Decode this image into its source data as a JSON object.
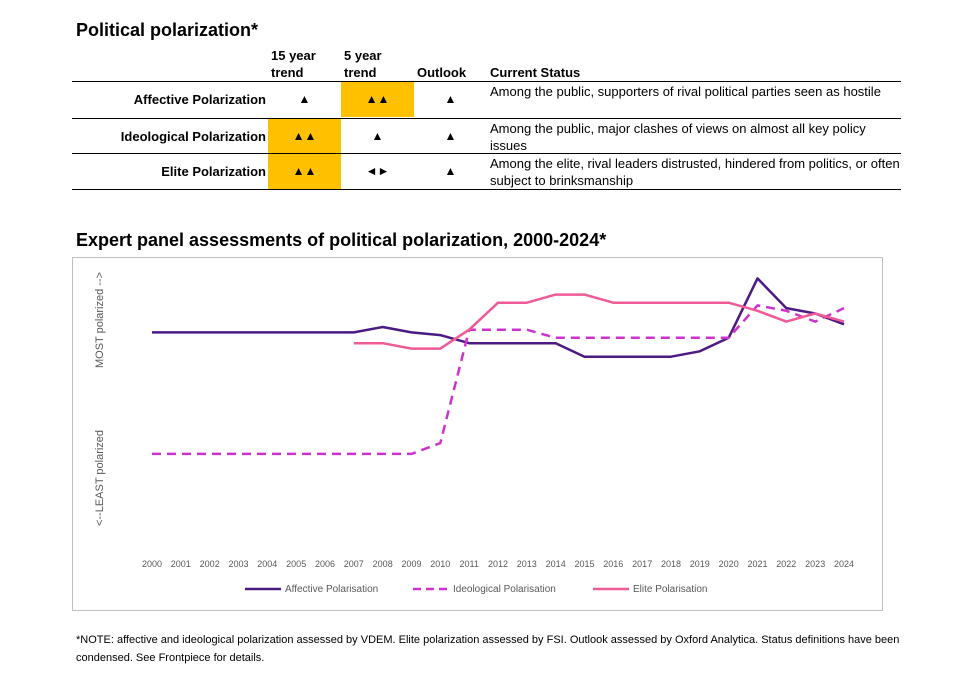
{
  "table": {
    "title": "Political polarization*",
    "headers": {
      "trend15": "15 year trend",
      "trend5": "5 year trend",
      "outlook": "Outlook",
      "status": "Current Status"
    },
    "rows": [
      {
        "label": "Affective Polarization",
        "trend15": "▲",
        "trend5": "▲▲",
        "outlook": "▲",
        "status": "Among the public, supporters of rival political parties seen as hostile",
        "highlight_color": "#ffc000"
      },
      {
        "label": "Ideological Polarization",
        "trend15": "▲▲",
        "trend5": "▲",
        "outlook": "▲",
        "status": "Among the public, major clashes of views on almost all key policy issues",
        "highlight_color": "#ffc000"
      },
      {
        "label": "Elite Polarization",
        "trend15": "▲▲",
        "trend5": "◄►",
        "outlook": "▲",
        "status": "Among the elite, rival leaders distrusted, hindered from politics, or often subject to brinksmanship",
        "highlight_color": "#ffc000"
      }
    ]
  },
  "chart_data": {
    "type": "line",
    "title": "Expert panel assessments of political polarization, 2000-2024*",
    "ylabel_top": "MOST polarized -->",
    "ylabel_bottom": "<--LEAST polarized",
    "x": [
      2000,
      2001,
      2002,
      2003,
      2004,
      2005,
      2006,
      2007,
      2008,
      2009,
      2010,
      2011,
      2012,
      2013,
      2014,
      2015,
      2016,
      2017,
      2018,
      2019,
      2020,
      2021,
      2022,
      2023,
      2024
    ],
    "ylim": [
      0,
      100
    ],
    "grid": false,
    "legend": "bottom",
    "series": [
      {
        "name": "Affective Polarisation",
        "color": "#4b1a82",
        "dash": "solid",
        "values": [
          78,
          78,
          78,
          78,
          78,
          78,
          78,
          78,
          80,
          78,
          77,
          74,
          74,
          74,
          74,
          69,
          69,
          69,
          69,
          71,
          76,
          98,
          87,
          85,
          81
        ]
      },
      {
        "name": "Ideological Polarisation",
        "color": "#cc33cc",
        "dash": "dashed",
        "values": [
          33,
          33,
          33,
          33,
          33,
          33,
          33,
          33,
          33,
          33,
          37,
          79,
          79,
          79,
          76,
          76,
          76,
          76,
          76,
          76,
          76,
          88,
          86,
          82,
          87
        ]
      },
      {
        "name": "Elite Polarisation",
        "color": "#ee5b96",
        "dash": "solid",
        "values": [
          null,
          null,
          null,
          null,
          null,
          null,
          null,
          74,
          74,
          72,
          72,
          79,
          89,
          89,
          92,
          92,
          89,
          89,
          89,
          89,
          89,
          86,
          82,
          85,
          82
        ]
      }
    ]
  },
  "note": "*NOTE: affective and ideological polarization assessed by VDEM. Elite polarization assessed by FSI. Outlook assessed by Oxford Analytica. Status definitions have been condensed. See Frontpiece for details."
}
